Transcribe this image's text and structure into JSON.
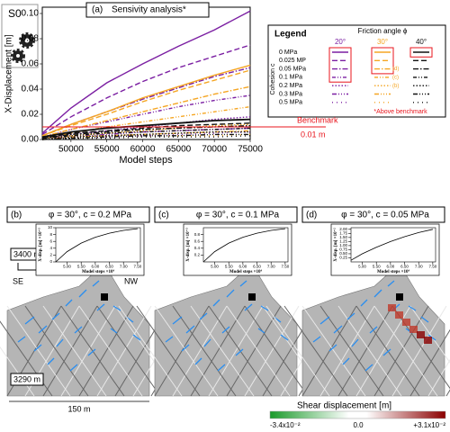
{
  "header": {
    "scenario": "S0"
  },
  "chart_data": {
    "type": "line",
    "panel_label": "(a)",
    "title": "Sensivity analysis*",
    "x_label": "Model steps",
    "y_label": "X-Displacement [m]",
    "x": [
      46000,
      50000,
      55000,
      60000,
      65000,
      70000,
      75000
    ],
    "xlim": [
      46000,
      75000
    ],
    "xticks": [
      50000,
      55000,
      60000,
      65000,
      70000,
      75000
    ],
    "ylim": [
      0,
      0.105
    ],
    "yticks": [
      {
        "value": 0,
        "label": "0.00"
      },
      {
        "value": 0.02,
        "label": "0.02"
      },
      {
        "value": 0.04,
        "label": "0.04"
      },
      {
        "value": 0.06,
        "label": "0.06"
      },
      {
        "value": 0.08,
        "label": "0.08"
      },
      {
        "value": 0.1,
        "label": "0.10"
      }
    ],
    "benchmark": {
      "value": 0.01,
      "label": "Benchmark",
      "value_label": "0.01 m",
      "color": "#e8141c"
    },
    "legend": {
      "title": "Legend",
      "column_title": "Friction angle ϕ",
      "row_title": "Cohesion c",
      "rows": [
        "0 MPa",
        "0.025 MP",
        "0.05 MPa",
        "0.1 MPa",
        "0.2 MPa",
        "0.3 MPa",
        "0.5 MPa"
      ],
      "case_labels": [
        "(d)",
        "(c)",
        "(b)"
      ],
      "note": "*Above benchmark"
    },
    "series": [
      {
        "name": "20°",
        "color": "#7b1fa2",
        "curves": [
          {
            "values": [
              0.005,
              0.025,
              0.045,
              0.06,
              0.074,
              0.087,
              0.102
            ]
          },
          {
            "values": [
              0.004,
              0.018,
              0.033,
              0.046,
              0.057,
              0.066,
              0.075
            ]
          },
          {
            "values": [
              0.003,
              0.012,
              0.022,
              0.032,
              0.041,
              0.05,
              0.057
            ]
          },
          {
            "values": [
              0.002,
              0.008,
              0.014,
              0.02,
              0.026,
              0.031,
              0.035
            ]
          },
          {
            "values": [
              0.001,
              0.004,
              0.007,
              0.01,
              0.013,
              0.016,
              0.018
            ]
          },
          {
            "values": [
              0.001,
              0.002,
              0.004,
              0.006,
              0.007,
              0.008,
              0.009
            ]
          },
          {
            "values": [
              0,
              0.001,
              0.002,
              0.003,
              0.004,
              0.005,
              0.006
            ]
          }
        ]
      },
      {
        "name": "30°",
        "color": "#f5a623",
        "curves": [
          {
            "values": [
              0.003,
              0.012,
              0.022,
              0.033,
              0.042,
              0.051,
              0.059
            ]
          },
          {
            "values": [
              0.003,
              0.011,
              0.02,
              0.03,
              0.039,
              0.047,
              0.055
            ]
          },
          {
            "values": [
              0.002,
              0.008,
              0.015,
              0.022,
              0.029,
              0.036,
              0.042
            ]
          },
          {
            "values": [
              0.001,
              0.005,
              0.01,
              0.014,
              0.018,
              0.022,
              0.026
            ]
          },
          {
            "values": [
              0.001,
              0.003,
              0.005,
              0.007,
              0.009,
              0.011,
              0.012
            ]
          },
          {
            "values": [
              0,
              0.002,
              0.003,
              0.004,
              0.005,
              0.006,
              0.007
            ]
          },
          {
            "values": [
              0,
              0.001,
              0.001,
              0.002,
              0.003,
              0.003,
              0.004
            ]
          }
        ]
      },
      {
        "name": "40°",
        "color": "#111111",
        "curves": [
          {
            "values": [
              0.002,
              0.006,
              0.009,
              0.011,
              0.013,
              0.015,
              0.016
            ]
          },
          {
            "values": [
              0.001,
              0.005,
              0.007,
              0.009,
              0.011,
              0.012,
              0.013
            ]
          },
          {
            "values": [
              0.001,
              0.004,
              0.006,
              0.008,
              0.009,
              0.01,
              0.011
            ]
          },
          {
            "values": [
              0.001,
              0.003,
              0.005,
              0.006,
              0.007,
              0.008,
              0.009
            ]
          },
          {
            "values": [
              0,
              0.002,
              0.003,
              0.004,
              0.005,
              0.006,
              0.006
            ]
          },
          {
            "values": [
              0,
              0.001,
              0.002,
              0.003,
              0.003,
              0.004,
              0.004
            ]
          },
          {
            "values": [
              0,
              0.001,
              0.001,
              0.002,
              0.002,
              0.002,
              0.003
            ]
          }
        ]
      }
    ]
  },
  "panels": [
    {
      "label": "(b)",
      "title": "φ = 30°, c = 0.2 MPa",
      "inset": {
        "type": "line",
        "y_label": "X-disp. [m] ×10⁻³",
        "x_label": "Model steps ×10⁴",
        "x": [
          4.6,
          5,
          5.5,
          6,
          6.5,
          7,
          7.5
        ],
        "values": [
          0,
          3,
          5.5,
          7.2,
          8.4,
          9.2,
          9.7
        ],
        "xlim": [
          4.6,
          7.6
        ],
        "xticks": [
          {
            "value": 5,
            "label": "5.00"
          },
          {
            "value": 5.5,
            "label": "5.50"
          },
          {
            "value": 6,
            "label": "6.00"
          },
          {
            "value": 6.5,
            "label": "6.50"
          },
          {
            "value": 7,
            "label": "7.00"
          },
          {
            "value": 7.5,
            "label": "7.50"
          }
        ],
        "ylim": [
          0,
          10
        ],
        "yticks": [
          0,
          2,
          4,
          6,
          8,
          10
        ]
      }
    },
    {
      "label": "(c)",
      "title": "φ = 30°, c = 0.1 MPa",
      "inset": {
        "type": "line",
        "y_label": "X-disp. [m] ×10⁻³",
        "x_label": "Model steps ×10⁴",
        "x": [
          4.6,
          5,
          5.5,
          6,
          6.5,
          7,
          7.5
        ],
        "values": [
          0,
          0.3,
          0.55,
          0.72,
          0.84,
          0.92,
          0.97
        ],
        "xlim": [
          4.6,
          7.6
        ],
        "xticks": [
          {
            "value": 5,
            "label": "5.00"
          },
          {
            "value": 5.5,
            "label": "5.50"
          },
          {
            "value": 6,
            "label": "6.00"
          },
          {
            "value": 6.5,
            "label": "6.50"
          },
          {
            "value": 7,
            "label": "7.00"
          },
          {
            "value": 7.5,
            "label": "7.50"
          }
        ],
        "ylim": [
          0,
          1
        ],
        "yticks": [
          0.2,
          0.4,
          0.6,
          0.8
        ]
      }
    },
    {
      "label": "(d)",
      "title": "φ = 30°, c = 0.05 MPa",
      "inset": {
        "type": "line",
        "y_label": "X-disp. [m] ×10⁻²",
        "x_label": "Model steps ×10⁴",
        "x": [
          4.6,
          5,
          5.5,
          6,
          6.5,
          7,
          7.5
        ],
        "values": [
          0.1,
          0.5,
          0.9,
          1.25,
          1.55,
          1.8,
          2.0
        ],
        "xlim": [
          4.6,
          7.6
        ],
        "xticks": [
          {
            "value": 5,
            "label": "5.00"
          },
          {
            "value": 5.5,
            "label": "5.50"
          },
          {
            "value": 6,
            "label": "6.00"
          },
          {
            "value": 6.5,
            "label": "6.50"
          },
          {
            "value": 7,
            "label": "7.00"
          },
          {
            "value": 7.5,
            "label": "7.50"
          }
        ],
        "ylim": [
          0,
          2.1
        ],
        "yticks": [
          {
            "value": 0.25,
            "label": "0.25"
          },
          {
            "value": 0.5,
            "label": "0.50"
          },
          {
            "value": 0.75,
            "label": "0.75"
          },
          {
            "value": 1,
            "label": "1.00"
          },
          {
            "value": 1.25,
            "label": "1.25"
          },
          {
            "value": 1.5,
            "label": "1.50"
          },
          {
            "value": 1.75,
            "label": "1.75"
          },
          {
            "value": 2,
            "label": "2.00"
          }
        ]
      }
    }
  ],
  "scale": {
    "top_elevation": "3400 m",
    "bottom_elevation": "3290 m",
    "width": "150 m",
    "left_direction": "SE",
    "right_direction": "NW"
  },
  "colorbar": {
    "title": "Shear displacement [m]",
    "min_label": "-3.4x10⁻²",
    "mid_label": "0.0",
    "max_label": "+3.1x10⁻²"
  }
}
